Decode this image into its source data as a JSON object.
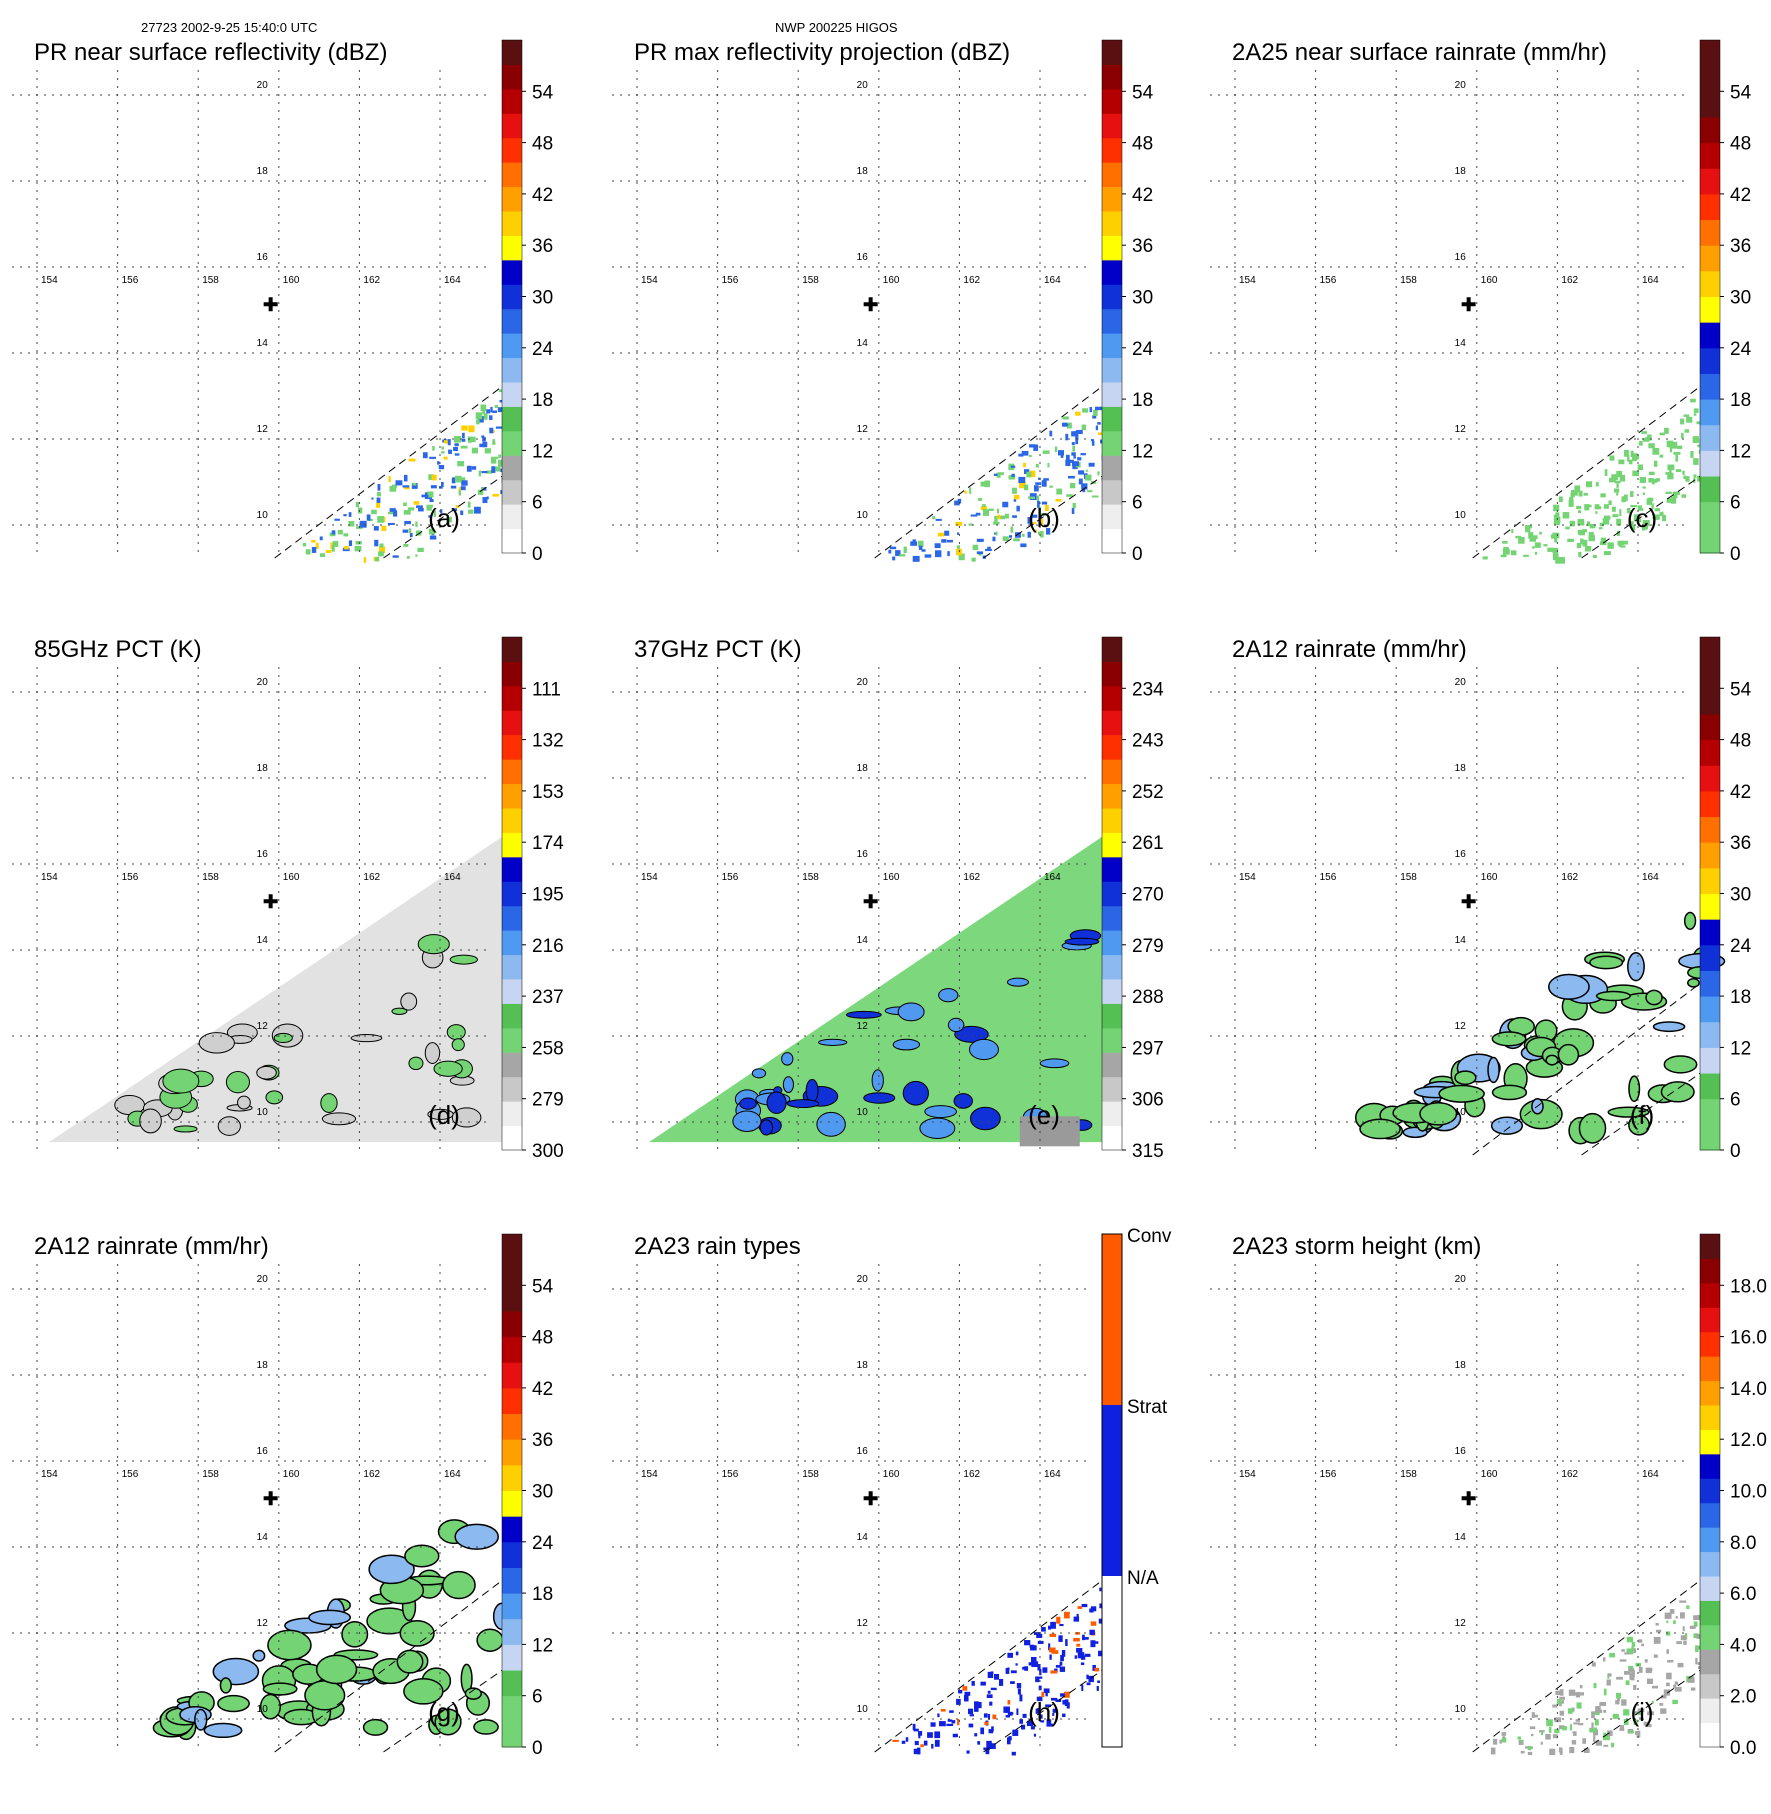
{
  "header": {
    "left": "27723 2002-9-25 15:40:0 UTC",
    "center": "NWP 200225 HIGOS"
  },
  "colors": {
    "grid": "#555555",
    "outline": "#000000",
    "swath_edge": "#000000"
  },
  "chart_data": [
    {
      "type": "heatmap",
      "panel": "(a)",
      "title": "PR near surface reflectivity (dBZ)",
      "lon_ticks": [
        "154",
        "156",
        "158",
        "160",
        "162",
        "164"
      ],
      "lat_ticks": [
        "10",
        "12",
        "14",
        "16",
        "18",
        "20"
      ],
      "colorbar": {
        "labels": [
          "0",
          "6",
          "12",
          "18",
          "24",
          "30",
          "36",
          "42",
          "48",
          "54"
        ],
        "colors": [
          "#ffffff",
          "#eeeeee",
          "#c8c8c8",
          "#a6a6a6",
          "#74d474",
          "#54c054",
          "#c6d6f2",
          "#8cbaf0",
          "#4f9af0",
          "#2a66e6",
          "#1030d8",
          "#0000c8",
          "#ffff00",
          "#ffd000",
          "#ffa000",
          "#ff7000",
          "#ff3000",
          "#e61010",
          "#b40000",
          "#8a0000",
          "#5a1010"
        ]
      },
      "data_kind": "swath",
      "label": "(a)"
    },
    {
      "type": "heatmap",
      "panel": "(b)",
      "title": "PR max reflectivity projection (dBZ)",
      "lon_ticks": [
        "154",
        "156",
        "158",
        "160",
        "162",
        "164"
      ],
      "lat_ticks": [
        "10",
        "12",
        "14",
        "16",
        "18",
        "20"
      ],
      "colorbar": {
        "labels": [
          "0",
          "6",
          "12",
          "18",
          "24",
          "30",
          "36",
          "42",
          "48",
          "54"
        ],
        "colors": [
          "#ffffff",
          "#eeeeee",
          "#c8c8c8",
          "#a6a6a6",
          "#74d474",
          "#54c054",
          "#c6d6f2",
          "#8cbaf0",
          "#4f9af0",
          "#2a66e6",
          "#1030d8",
          "#0000c8",
          "#ffff00",
          "#ffd000",
          "#ffa000",
          "#ff7000",
          "#ff3000",
          "#e61010",
          "#b40000",
          "#8a0000",
          "#5a1010"
        ]
      },
      "data_kind": "swath_dense",
      "label": "(b)"
    },
    {
      "type": "heatmap",
      "panel": "(c)",
      "title": "2A25 near surface rainrate (mm/hr)",
      "lon_ticks": [
        "154",
        "156",
        "158",
        "160",
        "162",
        "164"
      ],
      "lat_ticks": [
        "10",
        "12",
        "14",
        "16",
        "18",
        "20"
      ],
      "colorbar": {
        "labels": [
          "0",
          "6",
          "12",
          "18",
          "24",
          "30",
          "36",
          "42",
          "48",
          "54"
        ],
        "colors": [
          "#74d474",
          "#74d474",
          "#54c054",
          "#c6d6f2",
          "#8cbaf0",
          "#4f9af0",
          "#2a66e6",
          "#1030d8",
          "#0000c8",
          "#ffff00",
          "#ffd000",
          "#ffa000",
          "#ff7000",
          "#ff3000",
          "#e61010",
          "#b40000",
          "#8a0000",
          "#5a1010",
          "#5a1010",
          "#5a1010"
        ]
      },
      "data_kind": "swath_green",
      "label": "(c)"
    },
    {
      "type": "heatmap",
      "panel": "(d)",
      "title": "85GHz PCT (K)",
      "lon_ticks": [
        "154",
        "156",
        "158",
        "160",
        "162",
        "164"
      ],
      "lat_ticks": [
        "10",
        "12",
        "14",
        "16",
        "18",
        "20"
      ],
      "colorbar": {
        "labels": [
          "300",
          "279",
          "258",
          "237",
          "216",
          "195",
          "174",
          "153",
          "132",
          "111"
        ],
        "colors": [
          "#ffffff",
          "#eeeeee",
          "#c8c8c8",
          "#a6a6a6",
          "#74d474",
          "#54c054",
          "#c6d6f2",
          "#8cbaf0",
          "#4f9af0",
          "#2a66e6",
          "#1030d8",
          "#0000c8",
          "#ffff00",
          "#ffd000",
          "#ffa000",
          "#ff7000",
          "#ff3000",
          "#e61010",
          "#b40000",
          "#8a0000",
          "#5a1010"
        ]
      },
      "data_kind": "tmi_gray",
      "label": "(d)"
    },
    {
      "type": "heatmap",
      "panel": "(e)",
      "title": "37GHz PCT (K)",
      "lon_ticks": [
        "154",
        "156",
        "158",
        "160",
        "162",
        "164"
      ],
      "lat_ticks": [
        "10",
        "12",
        "14",
        "16",
        "18",
        "20"
      ],
      "colorbar": {
        "labels": [
          "315",
          "306",
          "297",
          "288",
          "279",
          "270",
          "261",
          "252",
          "243",
          "234"
        ],
        "colors": [
          "#ffffff",
          "#eeeeee",
          "#c8c8c8",
          "#a6a6a6",
          "#74d474",
          "#54c054",
          "#c6d6f2",
          "#8cbaf0",
          "#4f9af0",
          "#2a66e6",
          "#1030d8",
          "#0000c8",
          "#ffff00",
          "#ffd000",
          "#ffa000",
          "#ff7000",
          "#ff3000",
          "#e61010",
          "#b40000",
          "#8a0000",
          "#5a1010"
        ]
      },
      "data_kind": "tmi_green",
      "label": "(e)"
    },
    {
      "type": "heatmap",
      "panel": "(f)",
      "title": "2A12 rainrate (mm/hr)",
      "lon_ticks": [
        "154",
        "156",
        "158",
        "160",
        "162",
        "164"
      ],
      "lat_ticks": [
        "10",
        "12",
        "14",
        "16",
        "18",
        "20"
      ],
      "colorbar": {
        "labels": [
          "0",
          "6",
          "12",
          "18",
          "24",
          "30",
          "36",
          "42",
          "48",
          "54"
        ],
        "colors": [
          "#74d474",
          "#74d474",
          "#54c054",
          "#c6d6f2",
          "#8cbaf0",
          "#4f9af0",
          "#2a66e6",
          "#1030d8",
          "#0000c8",
          "#ffff00",
          "#ffd000",
          "#ffa000",
          "#ff7000",
          "#ff3000",
          "#e61010",
          "#b40000",
          "#8a0000",
          "#5a1010",
          "#5a1010",
          "#5a1010"
        ]
      },
      "data_kind": "tmi_rain",
      "label": "(f)"
    },
    {
      "type": "heatmap",
      "panel": "(g)",
      "title": "2A12 rainrate (mm/hr)",
      "lon_ticks": [
        "154",
        "156",
        "158",
        "160",
        "162",
        "164"
      ],
      "lat_ticks": [
        "10",
        "12",
        "14",
        "16",
        "18",
        "20"
      ],
      "colorbar": {
        "labels": [
          "0",
          "6",
          "12",
          "18",
          "24",
          "30",
          "36",
          "42",
          "48",
          "54"
        ],
        "colors": [
          "#74d474",
          "#74d474",
          "#54c054",
          "#c6d6f2",
          "#8cbaf0",
          "#4f9af0",
          "#2a66e6",
          "#1030d8",
          "#0000c8",
          "#ffff00",
          "#ffd000",
          "#ffa000",
          "#ff7000",
          "#ff3000",
          "#e61010",
          "#b40000",
          "#8a0000",
          "#5a1010",
          "#5a1010",
          "#5a1010"
        ]
      },
      "data_kind": "tmi_rain",
      "label": "(g)"
    },
    {
      "type": "heatmap",
      "panel": "(h)",
      "title": "2A23 rain types",
      "lon_ticks": [
        "154",
        "156",
        "158",
        "160",
        "162",
        "164"
      ],
      "lat_ticks": [
        "10",
        "12",
        "14",
        "16",
        "18",
        "20"
      ],
      "colorbar": {
        "categorical": true,
        "labels": [
          "N/A",
          "Strat",
          "Conv"
        ],
        "colors": [
          "#ffffff",
          "#1020e0",
          "#ff5a00"
        ]
      },
      "data_kind": "raintype",
      "label": "(h)"
    },
    {
      "type": "heatmap",
      "panel": "(i)",
      "title": "2A23 storm height (km)",
      "lon_ticks": [
        "154",
        "156",
        "158",
        "160",
        "162",
        "164"
      ],
      "lat_ticks": [
        "10",
        "12",
        "14",
        "16",
        "18",
        "20"
      ],
      "colorbar": {
        "labels": [
          "0.0",
          "2.0",
          "4.0",
          "6.0",
          "8.0",
          "10.0",
          "12.0",
          "14.0",
          "16.0",
          "18.0"
        ],
        "colors": [
          "#ffffff",
          "#eeeeee",
          "#c8c8c8",
          "#a6a6a6",
          "#74d474",
          "#54c054",
          "#c6d6f2",
          "#8cbaf0",
          "#4f9af0",
          "#2a66e6",
          "#1030d8",
          "#0000c8",
          "#ffff00",
          "#ffd000",
          "#ffa000",
          "#ff7000",
          "#ff3000",
          "#e61010",
          "#b40000",
          "#8a0000",
          "#5a1010"
        ]
      },
      "data_kind": "swath_gray",
      "label": "(i)"
    }
  ]
}
